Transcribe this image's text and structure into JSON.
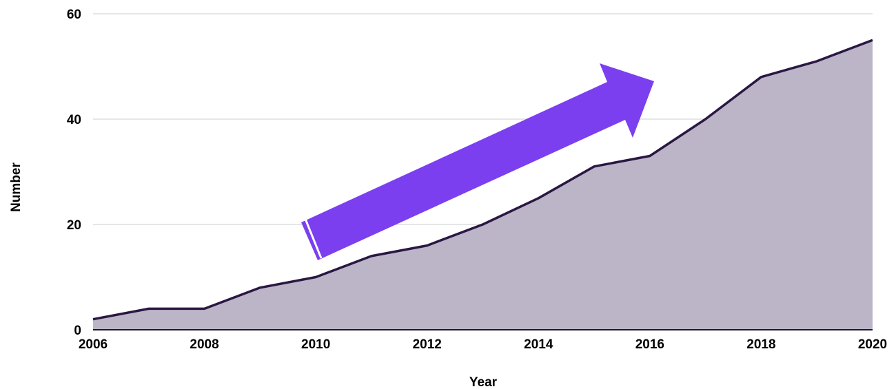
{
  "chart_data": {
    "type": "area",
    "x": [
      2006,
      2007,
      2008,
      2009,
      2010,
      2011,
      2012,
      2013,
      2014,
      2015,
      2016,
      2017,
      2018,
      2019,
      2020
    ],
    "values": [
      2,
      4,
      4,
      8,
      10,
      14,
      16,
      20,
      25,
      31,
      33,
      40,
      48,
      51,
      55
    ],
    "xlabel": "Year",
    "ylabel": "Number",
    "xlim": [
      2006,
      2020
    ],
    "ylim": [
      0,
      60
    ],
    "x_ticks": [
      "2006",
      "2008",
      "2010",
      "2012",
      "2014",
      "2016",
      "2018",
      "2020"
    ],
    "y_ticks": [
      "0",
      "20",
      "40",
      "60"
    ],
    "grid": "horizontal",
    "annotation": "upward trend arrow"
  },
  "colors": {
    "area_fill": "#bcb5c8",
    "line": "#2a1743",
    "arrow": "#7b3ff0",
    "grid": "#cccccc"
  }
}
